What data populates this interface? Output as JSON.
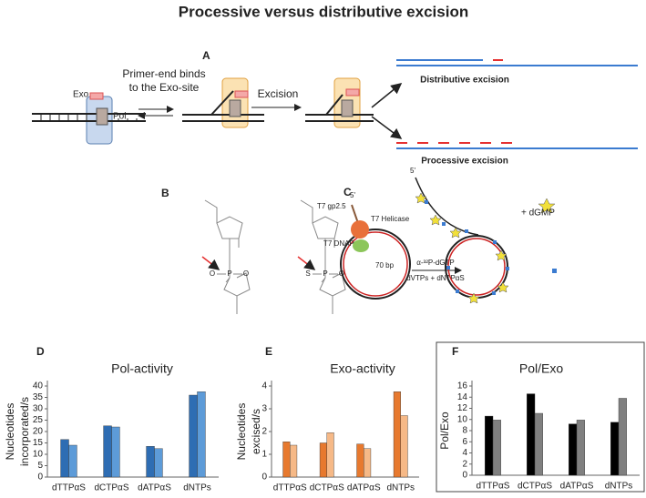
{
  "title": "Processive versus distributive excision",
  "panel_a": {
    "label": "A",
    "exo": "Exo",
    "pol": "Pol",
    "binding": [
      "Primer-end binds",
      "to the Exo-site"
    ],
    "excision": "Excision",
    "distributive": "Distributive excision",
    "processive": "Processive excision"
  },
  "panel_b": {
    "label": "B",
    "left_atoms": [
      "O",
      "P",
      "O"
    ],
    "right_atoms": [
      "S",
      "P",
      "O"
    ]
  },
  "panel_c": {
    "label": "C",
    "five_prime": "5'",
    "gp25": "T7 gp2.5",
    "helicase": "T7 Helicase",
    "dnap": "T7 DNAP",
    "size": "70 bp",
    "label_nt": "α-³²P-dGTP",
    "mix": "dVTPs + dNTPαS",
    "product": "+ dGMP"
  },
  "chart_data": [
    {
      "type": "bar",
      "panel_label": "D",
      "title": "Pol-activity",
      "ylabel": [
        "Nucleotides",
        "incorporated/s"
      ],
      "categories": [
        "dTTPαS",
        "dCTPαS",
        "dATPαS",
        "dNTPs"
      ],
      "series": [
        {
          "color": "#2e6db3",
          "values": [
            16.5,
            22.5,
            13.5,
            36
          ]
        },
        {
          "color": "#5d9bd8",
          "values": [
            14,
            22,
            12.5,
            37.5
          ]
        }
      ],
      "ylim": [
        0,
        40
      ],
      "yticks": [
        0,
        5,
        10,
        15,
        20,
        25,
        30,
        35,
        40
      ]
    },
    {
      "type": "bar",
      "panel_label": "E",
      "title": "Exo-activity",
      "ylabel": [
        "Nucleotides",
        "excised/s"
      ],
      "categories": [
        "dTTPαS",
        "dCTPαS",
        "dATPαS",
        "dNTPs"
      ],
      "series": [
        {
          "color": "#e7792e",
          "values": [
            1.55,
            1.5,
            1.45,
            3.75
          ]
        },
        {
          "color": "#f6b987",
          "values": [
            1.4,
            1.95,
            1.25,
            2.7
          ]
        }
      ],
      "ylim": [
        0,
        4
      ],
      "yticks": [
        0,
        1,
        2,
        3,
        4
      ]
    },
    {
      "type": "bar",
      "panel_label": "F",
      "title": "Pol/Exo",
      "ylabel": [
        "Pol/Exo"
      ],
      "frame": true,
      "categories": [
        "dTTPαS",
        "dCTPαS",
        "dATPαS",
        "dNTPs"
      ],
      "series": [
        {
          "color": "#000000",
          "values": [
            10.6,
            14.6,
            9.2,
            9.5
          ]
        },
        {
          "color": "#808080",
          "values": [
            9.9,
            11.1,
            9.9,
            13.8
          ]
        }
      ],
      "ylim": [
        0,
        16
      ],
      "yticks": [
        0,
        2,
        4,
        6,
        8,
        10,
        12,
        14,
        16
      ]
    }
  ]
}
